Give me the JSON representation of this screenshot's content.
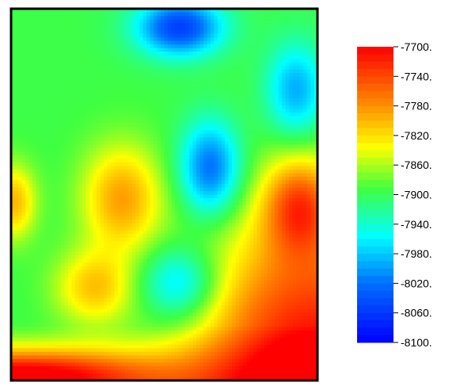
{
  "chart_data": {
    "type": "heatmap",
    "title": "",
    "xlabel": "",
    "ylabel": "",
    "grid": false,
    "colorbar": {
      "placement": "right",
      "range": [
        -8100,
        -7700
      ],
      "ticks": [
        -7700,
        -7740,
        -7780,
        -7820,
        -7860,
        -7900,
        -7940,
        -7980,
        -8020,
        -8060,
        -8100
      ],
      "tick_labels": [
        "-7700.",
        "-7740.",
        "-7780.",
        "-7820.",
        "-7860.",
        "-7900.",
        "-7940.",
        "-7980.",
        "-8020.",
        "-8060.",
        "-8100."
      ],
      "colors_low_to_high": [
        "#0000ff",
        "#0070ff",
        "#00ffff",
        "#40ff40",
        "#ffff00",
        "#ff8000",
        "#ff0000"
      ]
    },
    "field": {
      "background": -7895,
      "features": [
        {
          "kind": "low",
          "value": -8055,
          "u": 0.55,
          "v": 0.05
        },
        {
          "kind": "low",
          "value": -8030,
          "u": 0.65,
          "v": 0.43
        },
        {
          "kind": "low",
          "value": -7990,
          "u": 0.55,
          "v": 0.74
        },
        {
          "kind": "low",
          "value": -7995,
          "u": 0.93,
          "v": 0.22
        },
        {
          "kind": "high",
          "value": -7790,
          "u": 0.36,
          "v": 0.51
        },
        {
          "kind": "high",
          "value": -7770,
          "u": 0.94,
          "v": 0.53
        },
        {
          "kind": "high",
          "value": -7810,
          "u": 0.27,
          "v": 0.75
        },
        {
          "kind": "high",
          "value": -7800,
          "u": 0.01,
          "v": 0.52
        },
        {
          "kind": "high",
          "value": -7700,
          "u": 0.98,
          "v": 0.95
        },
        {
          "kind": "high",
          "value": -7710,
          "u": 0.03,
          "v": 0.99
        }
      ]
    }
  }
}
